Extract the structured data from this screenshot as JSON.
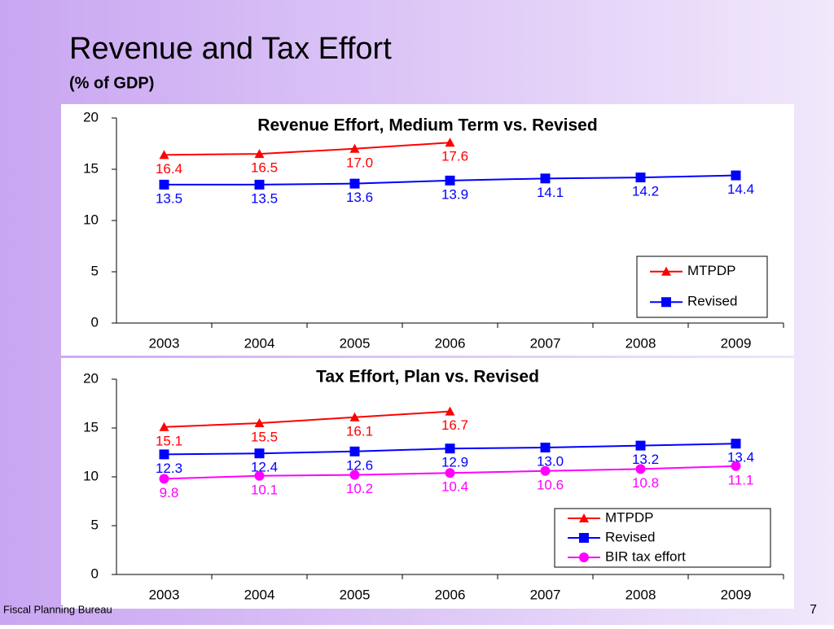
{
  "slide": {
    "title": "Revenue and Tax Effort",
    "subtitle": "(% of GDP)",
    "footer": "Fiscal Planning Bureau",
    "page_number": "7"
  },
  "chart_data": [
    {
      "type": "line",
      "title": "Revenue Effort, Medium Term vs. Revised",
      "categories": [
        "2003",
        "2004",
        "2005",
        "2006",
        "2007",
        "2008",
        "2009"
      ],
      "series": [
        {
          "name": "MTPDP",
          "color": "#ff0000",
          "marker": "triangle",
          "values": [
            16.4,
            16.5,
            17.0,
            17.6,
            null,
            null,
            null
          ],
          "value_labels": [
            "16.4",
            "16.5",
            "17.0",
            "17.6",
            null,
            null,
            null
          ]
        },
        {
          "name": "Revised",
          "color": "#0000ff",
          "marker": "square",
          "values": [
            13.5,
            13.5,
            13.6,
            13.9,
            14.1,
            14.2,
            14.4
          ],
          "value_labels": [
            "13.5",
            "13.5",
            "13.6",
            "13.9",
            "14.1",
            "14.2",
            "14.4"
          ]
        }
      ],
      "ylim": [
        0,
        20
      ],
      "yticks": [
        0,
        5,
        10,
        15,
        20
      ],
      "legend": "lower right"
    },
    {
      "type": "line",
      "title": "Tax Effort, Plan vs. Revised",
      "categories": [
        "2003",
        "2004",
        "2005",
        "2006",
        "2007",
        "2008",
        "2009"
      ],
      "series": [
        {
          "name": "MTPDP",
          "color": "#ff0000",
          "marker": "triangle",
          "values": [
            15.1,
            15.5,
            16.1,
            16.7,
            null,
            null,
            null
          ],
          "value_labels": [
            "15.1",
            "15.5",
            "16.1",
            "16.7",
            null,
            null,
            null
          ]
        },
        {
          "name": "Revised",
          "color": "#0000ff",
          "marker": "square",
          "values": [
            12.3,
            12.4,
            12.6,
            12.9,
            13.0,
            13.2,
            13.4
          ],
          "value_labels": [
            "12.3",
            "12.4",
            "12.6",
            "12.9",
            "13.0",
            "13.2",
            "13.4"
          ]
        },
        {
          "name": "BIR tax effort",
          "color": "#ff00ff",
          "marker": "circle",
          "values": [
            9.8,
            10.1,
            10.2,
            10.4,
            10.6,
            10.8,
            11.1
          ],
          "value_labels": [
            "9.8",
            "10.1",
            "10.2",
            "10.4",
            "10.6",
            "10.8",
            "11.1"
          ]
        }
      ],
      "ylim": [
        0,
        20
      ],
      "yticks": [
        0,
        5,
        10,
        15,
        20
      ],
      "legend": "lower right"
    }
  ]
}
